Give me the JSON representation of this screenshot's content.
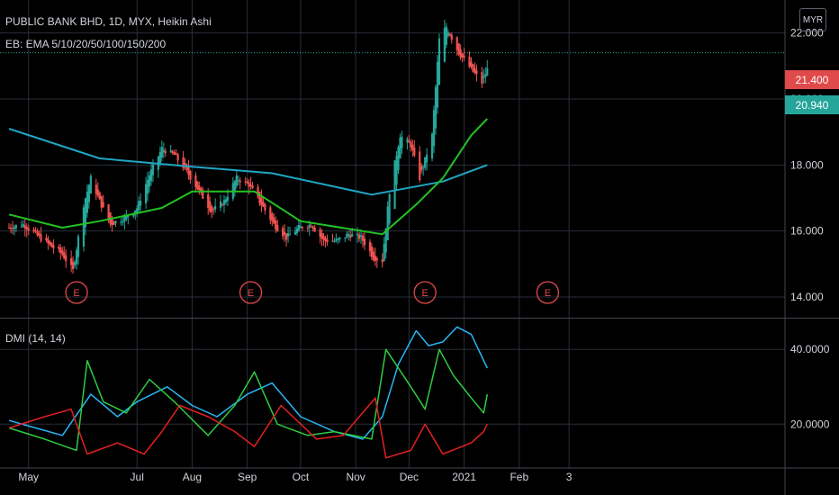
{
  "header": {
    "title": "PUBLIC BANK BHD, 1D, MYX, Heikin Ashi",
    "indicator": "EB: EMA 5/10/20/50/100/150/200",
    "currency": "MYR"
  },
  "price_tags": {
    "high": "21.400",
    "last": "20.940",
    "high_color": "#e04a4a",
    "last_color": "#26a69a"
  },
  "colors": {
    "background": "#000000",
    "grid": "#2a2e39",
    "up": "#26a69a",
    "down": "#ef5350",
    "ema_long": "#1fa7c4",
    "ema_mid": "#22c322",
    "adx": "#29b6f6",
    "di_plus": "#2ecc40",
    "di_minus": "#e32020",
    "earnings": "#e04a4a"
  },
  "icons": {
    "earnings_marker": "E"
  },
  "dmi_label": "DMI (14, 14)",
  "chart_data": [
    {
      "type": "candlestick",
      "title": "PUBLIC BANK BHD, 1D, MYX, Heikin Ashi",
      "x_ticks": [
        "May",
        "Jul",
        "Aug",
        "Sep",
        "Oct",
        "Nov",
        "Dec",
        "2021",
        "Feb",
        "3"
      ],
      "y_ticks": [
        "14.000",
        "16.000",
        "18.000",
        "20.000",
        "22.000"
      ],
      "ylim": [
        13.4,
        23.0
      ],
      "series": [
        {
          "name": "",
          "type": "heikin-ashi",
          "anchors": [
            [
              "2020-04-20",
              16.1
            ],
            [
              "2020-04-28",
              16.2
            ],
            [
              "2020-05-05",
              15.9
            ],
            [
              "2020-05-12",
              15.6
            ],
            [
              "2020-05-20",
              15.3
            ],
            [
              "2020-05-26",
              14.8
            ],
            [
              "2020-06-01",
              16.8
            ],
            [
              "2020-06-05",
              17.6
            ],
            [
              "2020-06-10",
              16.9
            ],
            [
              "2020-06-16",
              16.2
            ],
            [
              "2020-06-24",
              16.4
            ],
            [
              "2020-07-01",
              16.7
            ],
            [
              "2020-07-08",
              17.7
            ],
            [
              "2020-07-15",
              18.5
            ],
            [
              "2020-07-22",
              18.3
            ],
            [
              "2020-07-29",
              17.8
            ],
            [
              "2020-08-05",
              17.2
            ],
            [
              "2020-08-12",
              16.6
            ],
            [
              "2020-08-19",
              16.9
            ],
            [
              "2020-08-26",
              17.6
            ],
            [
              "2020-09-02",
              17.4
            ],
            [
              "2020-09-09",
              16.8
            ],
            [
              "2020-09-16",
              16.2
            ],
            [
              "2020-09-23",
              15.8
            ],
            [
              "2020-09-30",
              16.1
            ],
            [
              "2020-10-07",
              16.2
            ],
            [
              "2020-10-14",
              15.7
            ],
            [
              "2020-10-21",
              15.7
            ],
            [
              "2020-10-28",
              15.9
            ],
            [
              "2020-11-04",
              15.8
            ],
            [
              "2020-11-11",
              15.2
            ],
            [
              "2020-11-16",
              15.1
            ],
            [
              "2020-11-20",
              17.2
            ],
            [
              "2020-11-26",
              18.9
            ],
            [
              "2020-12-02",
              18.6
            ],
            [
              "2020-12-07",
              17.6
            ],
            [
              "2020-12-14",
              18.9
            ],
            [
              "2020-12-18",
              21.8
            ],
            [
              "2020-12-22",
              22.2
            ],
            [
              "2020-12-29",
              21.4
            ],
            [
              "2021-01-05",
              20.9
            ],
            [
              "2021-01-11",
              20.5
            ],
            [
              "2021-01-14",
              20.9
            ]
          ]
        },
        {
          "name": "",
          "type": "line",
          "color": "#1fa7c4",
          "points": [
            [
              "2020-04-20",
              19.1
            ],
            [
              "2020-06-10",
              18.2
            ],
            [
              "2020-08-01",
              17.95
            ],
            [
              "2020-09-15",
              17.75
            ],
            [
              "2020-11-10",
              17.1
            ],
            [
              "2020-12-20",
              17.5
            ],
            [
              "2021-01-14",
              18.0
            ]
          ]
        },
        {
          "name": "",
          "type": "line",
          "color": "#22c322",
          "points": [
            [
              "2020-04-20",
              16.5
            ],
            [
              "2020-05-20",
              16.1
            ],
            [
              "2020-06-10",
              16.3
            ],
            [
              "2020-07-15",
              16.7
            ],
            [
              "2020-08-01",
              17.2
            ],
            [
              "2020-09-05",
              17.2
            ],
            [
              "2020-10-01",
              16.3
            ],
            [
              "2020-11-16",
              15.9
            ],
            [
              "2020-12-05",
              16.8
            ],
            [
              "2020-12-20",
              17.6
            ],
            [
              "2021-01-05",
              18.9
            ],
            [
              "2021-01-14",
              19.4
            ]
          ]
        }
      ],
      "earnings_dates": [
        "2020-05-28",
        "2020-09-03",
        "2020-12-10",
        "2021-02-17"
      ]
    },
    {
      "type": "line",
      "title": "DMI (14, 14)",
      "x_ticks": [
        "May",
        "Jul",
        "Aug",
        "Sep",
        "Oct",
        "Nov",
        "Dec",
        "2021",
        "Feb",
        "3"
      ],
      "y_ticks": [
        "20.0000",
        "40.0000"
      ],
      "ylim": [
        9,
        48
      ],
      "series": [
        {
          "name": "",
          "color": "#29b6f6",
          "points": [
            [
              "2020-04-20",
              21
            ],
            [
              "2020-05-05",
              19
            ],
            [
              "2020-05-20",
              17
            ],
            [
              "2020-06-05",
              28
            ],
            [
              "2020-06-20",
              22
            ],
            [
              "2020-07-01",
              26
            ],
            [
              "2020-07-18",
              30
            ],
            [
              "2020-08-01",
              25
            ],
            [
              "2020-08-15",
              22
            ],
            [
              "2020-09-01",
              28
            ],
            [
              "2020-09-15",
              31
            ],
            [
              "2020-10-01",
              22
            ],
            [
              "2020-10-20",
              18
            ],
            [
              "2020-11-05",
              16
            ],
            [
              "2020-11-16",
              22
            ],
            [
              "2020-11-25",
              36
            ],
            [
              "2020-12-05",
              45
            ],
            [
              "2020-12-12",
              41
            ],
            [
              "2020-12-20",
              42
            ],
            [
              "2020-12-28",
              46
            ],
            [
              "2021-01-05",
              44
            ],
            [
              "2021-01-14",
              35
            ]
          ]
        },
        {
          "name": "",
          "color": "#2ecc40",
          "points": [
            [
              "2020-04-20",
              19
            ],
            [
              "2020-05-10",
              16
            ],
            [
              "2020-05-28",
              13
            ],
            [
              "2020-06-03",
              37
            ],
            [
              "2020-06-12",
              26
            ],
            [
              "2020-06-25",
              23
            ],
            [
              "2020-07-08",
              32
            ],
            [
              "2020-07-22",
              26
            ],
            [
              "2020-08-10",
              17
            ],
            [
              "2020-08-25",
              25
            ],
            [
              "2020-09-05",
              34
            ],
            [
              "2020-09-18",
              20
            ],
            [
              "2020-10-05",
              17
            ],
            [
              "2020-10-20",
              18
            ],
            [
              "2020-11-10",
              16
            ],
            [
              "2020-11-18",
              40
            ],
            [
              "2020-12-02",
              30
            ],
            [
              "2020-12-10",
              24
            ],
            [
              "2020-12-18",
              40
            ],
            [
              "2020-12-26",
              33
            ],
            [
              "2021-01-05",
              27
            ],
            [
              "2021-01-12",
              23
            ],
            [
              "2021-01-14",
              28
            ]
          ]
        },
        {
          "name": "",
          "color": "#e32020",
          "points": [
            [
              "2020-04-20",
              19
            ],
            [
              "2020-05-10",
              22
            ],
            [
              "2020-05-25",
              24
            ],
            [
              "2020-06-03",
              12
            ],
            [
              "2020-06-20",
              15
            ],
            [
              "2020-07-05",
              12
            ],
            [
              "2020-07-15",
              18
            ],
            [
              "2020-07-25",
              25
            ],
            [
              "2020-08-10",
              22
            ],
            [
              "2020-08-25",
              18
            ],
            [
              "2020-09-05",
              14
            ],
            [
              "2020-09-20",
              25
            ],
            [
              "2020-10-10",
              16
            ],
            [
              "2020-10-25",
              17
            ],
            [
              "2020-11-12",
              27
            ],
            [
              "2020-11-18",
              11
            ],
            [
              "2020-12-02",
              13
            ],
            [
              "2020-12-10",
              20
            ],
            [
              "2020-12-20",
              12
            ],
            [
              "2021-01-05",
              15
            ],
            [
              "2021-01-12",
              18
            ],
            [
              "2021-01-14",
              20
            ]
          ]
        }
      ]
    }
  ]
}
